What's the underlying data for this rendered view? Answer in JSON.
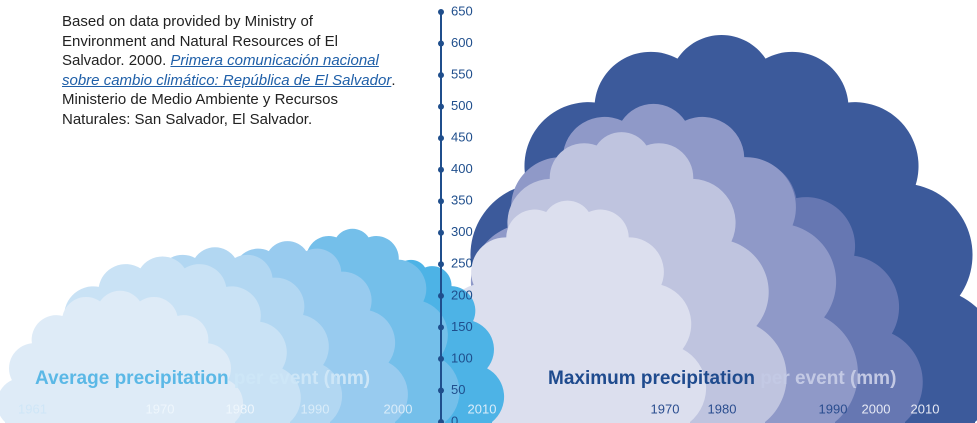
{
  "source": {
    "before": "Based on data provided by Ministry of Environment and Natural Resources of El Salvador. 2000. ",
    "link": "Primera comunicación nacional sobre cambio climático: República de El Salvador",
    "after": ". Ministerio de Medio Ambiente y Recursos Naturales: San Salvador, El Salvador."
  },
  "chart_data": [
    {
      "type": "cloud",
      "title": "Average precipitation",
      "subtitle": "per event (mm)",
      "categories": [
        "1961",
        "1970",
        "1980",
        "1990",
        "2000",
        "2010"
      ],
      "values": [
        210,
        265,
        280,
        290,
        310,
        260
      ],
      "colors": [
        "#deebf7",
        "#c9e2f5",
        "#b2d7f2",
        "#98cbef",
        "#74bfea",
        "#4db3e6"
      ],
      "ylim": [
        0,
        650
      ],
      "yticks": [
        0,
        50,
        100,
        150,
        200,
        250,
        300,
        350,
        400,
        450,
        500,
        550,
        600,
        650
      ]
    },
    {
      "type": "cloud",
      "title": "Maximum precipitation",
      "subtitle": "per event (mm)",
      "categories": [
        "1970",
        "1980",
        "1990",
        "2000",
        "2010"
      ],
      "values": [
        355,
        465,
        510,
        440,
        620
      ],
      "colors": [
        "#dcdfee",
        "#bfc4df",
        "#8f99c8",
        "#6677b2",
        "#3c5a9b"
      ],
      "ylim": [
        0,
        650
      ]
    }
  ]
}
